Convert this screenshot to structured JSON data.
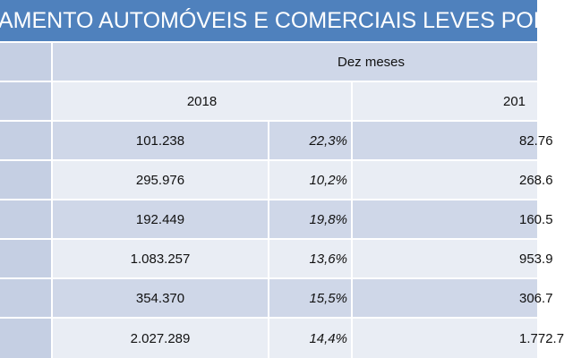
{
  "title": "AMENTO AUTOMÓVEIS E COMERCIAIS LEVES POR",
  "header": {
    "period": "Dez meses",
    "year_a": "2018",
    "year_b": "201"
  },
  "rows": [
    {
      "value_a": "101.238",
      "pct_a": "22,3%",
      "value_b": "82.76"
    },
    {
      "value_a": "295.976",
      "pct_a": "10,2%",
      "value_b": "268.6"
    },
    {
      "value_a": "192.449",
      "pct_a": "19,8%",
      "value_b": "160.5"
    },
    {
      "value_a": "1.083.257",
      "pct_a": "13,6%",
      "value_b": "953.9"
    },
    {
      "value_a": "354.370",
      "pct_a": "15,5%",
      "value_b": "306.7"
    },
    {
      "value_a": "2.027.289",
      "pct_a": "14,4%",
      "value_b": "1.772.7"
    }
  ],
  "colors": {
    "title_bg": "#4f81bd",
    "row_dark": "#cfd7e8",
    "row_light": "#e9edf4"
  }
}
